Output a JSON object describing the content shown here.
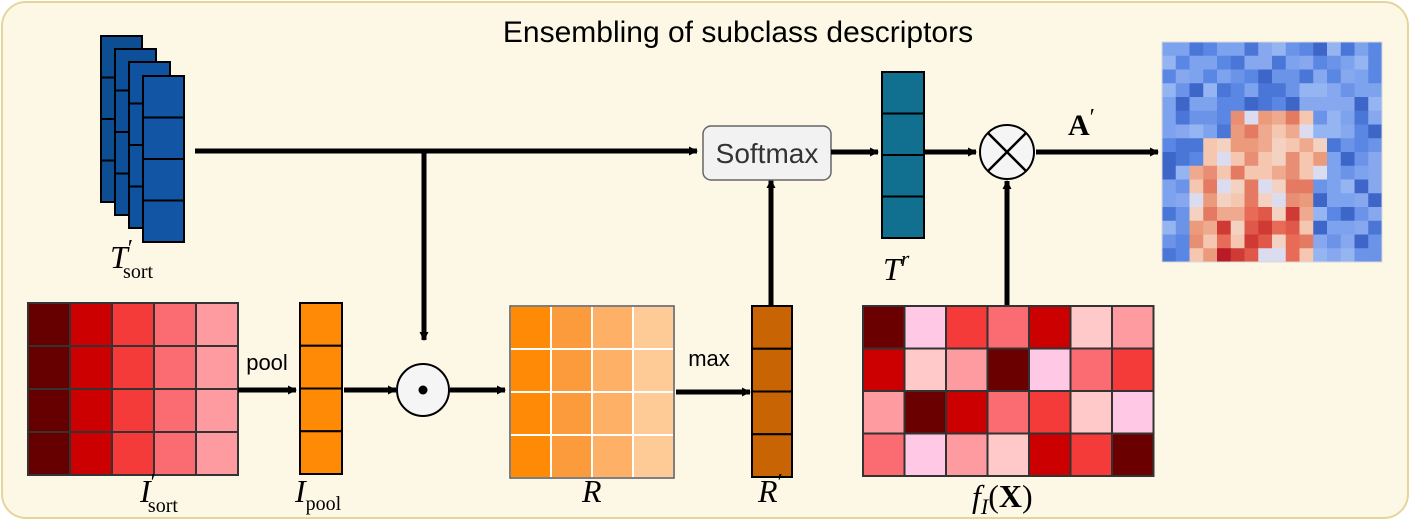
{
  "title": "Ensembling of subclass descriptors",
  "labels": {
    "t_sort": {
      "main": "T",
      "prime": "′",
      "sub": "sort"
    },
    "i_sort": {
      "main": "I",
      "prime": "′",
      "sub": "sort"
    },
    "i_pool": {
      "main": "I",
      "sub": "pool"
    },
    "r": {
      "main": "R"
    },
    "r_prime": {
      "main": "R",
      "prime": "′"
    },
    "t_r": {
      "main": "T",
      "sup": "r"
    },
    "f_i_x": {
      "f": "f",
      "sub": "I",
      "open": "(",
      "x": "X",
      "close": ")"
    },
    "a_prime": {
      "main": "A",
      "prime": "′"
    }
  },
  "ops": {
    "pool": "pool",
    "max": "max",
    "softmax": "Softmax",
    "hadamard_symbol": "•",
    "multiply_symbol": "×"
  },
  "colors": {
    "frame_bg": "#fdf8e6",
    "frame_border": "#e6d59b",
    "descriptor_blue": "#10509a",
    "pool_orange": "#ff8a05",
    "r_prime_orange": "#c86404",
    "t_r_teal": "#116f8f",
    "red_dark": "#6b0000",
    "red_mid": "#cc0000",
    "red_light": "#ff9aa2",
    "pink": "#ffc8e0"
  },
  "icons": {
    "hadamard": "circled-dot-icon",
    "multiply": "circled-times-icon",
    "attention_map": "heatmap-image"
  }
}
